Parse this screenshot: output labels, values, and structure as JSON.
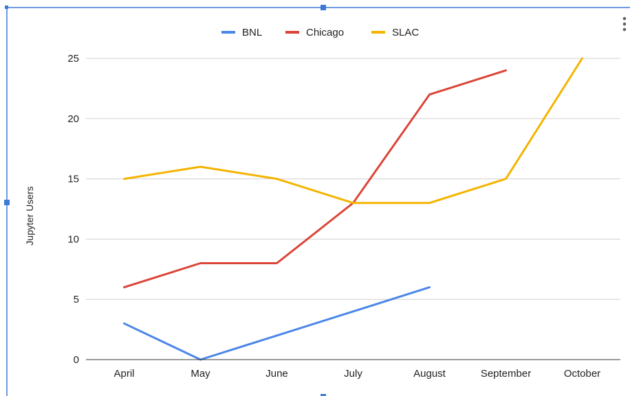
{
  "chart_data": {
    "type": "line",
    "categories": [
      "April",
      "May",
      "June",
      "July",
      "August",
      "September",
      "October"
    ],
    "series": [
      {
        "name": "BNL",
        "color": "#4a86e8",
        "values": [
          3,
          0,
          2,
          4,
          6,
          null,
          null
        ]
      },
      {
        "name": "Chicago",
        "color": "#db4437",
        "values": [
          6,
          8,
          8,
          13,
          22,
          24,
          null
        ]
      },
      {
        "name": "SLAC",
        "color": "#f4b400",
        "values": [
          15,
          16,
          15,
          13,
          13,
          15,
          25
        ]
      }
    ],
    "title": "",
    "xlabel": "",
    "ylabel": "Jupyter Users",
    "ylim": [
      0,
      25
    ],
    "yticks": [
      0,
      5,
      10,
      15,
      20,
      25
    ],
    "grid": true,
    "legend_position": "top"
  },
  "menu_icon": "more-vertical-icon"
}
